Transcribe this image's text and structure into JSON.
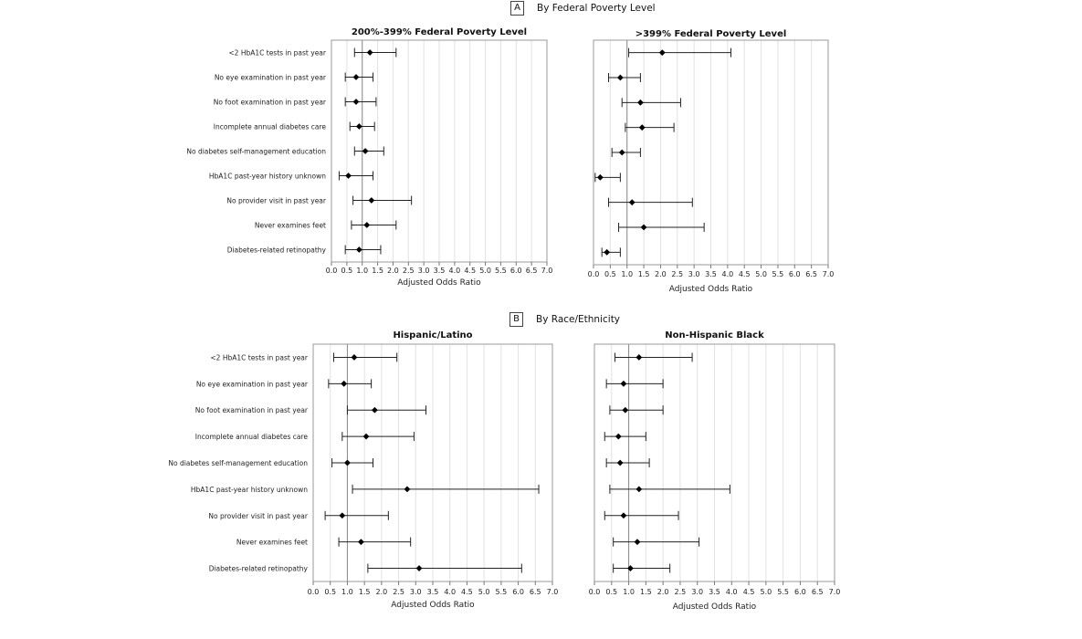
{
  "sections": [
    {
      "letter": "A",
      "title": "By Federal Poverty Level"
    },
    {
      "letter": "B",
      "title": "By Race/Ethnicity"
    }
  ],
  "chart_data": [
    {
      "type": "forest",
      "title": "200%-399% Federal Poverty Level",
      "xlabel": "Adjusted Odds Ratio",
      "xlim": [
        0.0,
        7.0
      ],
      "xticks": [
        "0.0",
        "0.5",
        "1.0",
        "1.5",
        "2.0",
        "2.5",
        "3.0",
        "3.5",
        "4.0",
        "4.5",
        "5.0",
        "5.5",
        "6.0",
        "6.5",
        "7.0"
      ],
      "reference_line": 1.0,
      "grid": true,
      "categories": [
        "<2 HbA1C tests in past year",
        "No eye examination in past year",
        "No foot examination in past year",
        "Incomplete annual diabetes care",
        "No diabetes self-management education",
        "HbA1C past-year history unknown",
        "No provider visit in past year",
        "Never examines feet",
        "Diabetes-related retinopathy"
      ],
      "estimate": [
        1.25,
        0.8,
        0.8,
        0.9,
        1.1,
        0.55,
        1.3,
        1.15,
        0.9
      ],
      "lower": [
        0.75,
        0.45,
        0.45,
        0.6,
        0.75,
        0.25,
        0.7,
        0.65,
        0.45
      ],
      "upper": [
        2.1,
        1.35,
        1.45,
        1.4,
        1.7,
        1.35,
        2.6,
        2.1,
        1.6
      ]
    },
    {
      "type": "forest",
      "title": ">399% Federal Poverty Level",
      "xlabel": "Adjusted Odds Ratio",
      "xlim": [
        0.0,
        7.0
      ],
      "xticks": [
        "0.0",
        "0.5",
        "1.0",
        "1.5",
        "2.0",
        "2.5",
        "3.0",
        "3.5",
        "4.0",
        "4.5",
        "5.0",
        "5.5",
        "6.0",
        "6.5",
        "7.0"
      ],
      "reference_line": 1.0,
      "grid": true,
      "categories": [
        "<2 HbA1C tests in past year",
        "No eye examination in past year",
        "No foot examination in past year",
        "Incomplete annual diabetes care",
        "No diabetes self-management education",
        "HbA1C past-year history unknown",
        "No provider visit in past year",
        "Never examines feet",
        "Diabetes-related retinopathy"
      ],
      "estimate": [
        2.05,
        0.8,
        1.4,
        1.45,
        0.85,
        0.2,
        1.15,
        1.5,
        0.4
      ],
      "lower": [
        1.05,
        0.45,
        0.85,
        0.95,
        0.55,
        0.05,
        0.45,
        0.75,
        0.25
      ],
      "upper": [
        4.1,
        1.4,
        2.6,
        2.4,
        1.4,
        0.8,
        2.95,
        3.3,
        0.8
      ]
    },
    {
      "type": "forest",
      "title": "Hispanic/Latino",
      "xlabel": "Adjusted Odds Ratio",
      "xlim": [
        0.0,
        7.0
      ],
      "xticks": [
        "0.0",
        "0.5",
        "1.0",
        "1.5",
        "2.0",
        "2.5",
        "3.0",
        "3.5",
        "4.0",
        "4.5",
        "5.0",
        "5.5",
        "6.0",
        "6.5",
        "7.0"
      ],
      "reference_line": 1.0,
      "grid": true,
      "categories": [
        "<2 HbA1C tests in past year",
        "No eye examination in past year",
        "No foot examination in past year",
        "Incomplete annual diabetes care",
        "No diabetes self-management education",
        "HbA1C past-year history unknown",
        "No provider visit in past year",
        "Never examines feet",
        "Diabetes-related retinopathy"
      ],
      "estimate": [
        1.2,
        0.9,
        1.8,
        1.55,
        1.0,
        2.75,
        0.85,
        1.4,
        3.1
      ],
      "lower": [
        0.6,
        0.45,
        1.0,
        0.85,
        0.55,
        1.15,
        0.35,
        0.75,
        1.6
      ],
      "upper": [
        2.45,
        1.7,
        3.3,
        2.95,
        1.75,
        6.6,
        2.2,
        2.85,
        6.1
      ]
    },
    {
      "type": "forest",
      "title": "Non-Hispanic Black",
      "xlabel": "Adjusted Odds Ratio",
      "xlim": [
        0.0,
        7.0
      ],
      "xticks": [
        "0.0",
        "0.5",
        "1.0",
        "1.5",
        "2.0",
        "2.5",
        "3.0",
        "3.5",
        "4.0",
        "4.5",
        "5.0",
        "5.5",
        "6.0",
        "6.5",
        "7.0"
      ],
      "reference_line": 1.0,
      "grid": true,
      "categories": [
        "<2 HbA1C tests in past year",
        "No eye examination in past year",
        "No foot examination in past year",
        "Incomplete annual diabetes care",
        "No diabetes self-management education",
        "HbA1C past-year history unknown",
        "No provider visit in past year",
        "Never examines feet",
        "Diabetes-related retinopathy"
      ],
      "estimate": [
        1.3,
        0.85,
        0.9,
        0.7,
        0.75,
        1.3,
        0.85,
        1.25,
        1.05
      ],
      "lower": [
        0.6,
        0.35,
        0.45,
        0.3,
        0.35,
        0.45,
        0.3,
        0.55,
        0.55
      ],
      "upper": [
        2.85,
        2.0,
        2.0,
        1.5,
        1.6,
        3.95,
        2.45,
        3.05,
        2.2
      ]
    }
  ]
}
